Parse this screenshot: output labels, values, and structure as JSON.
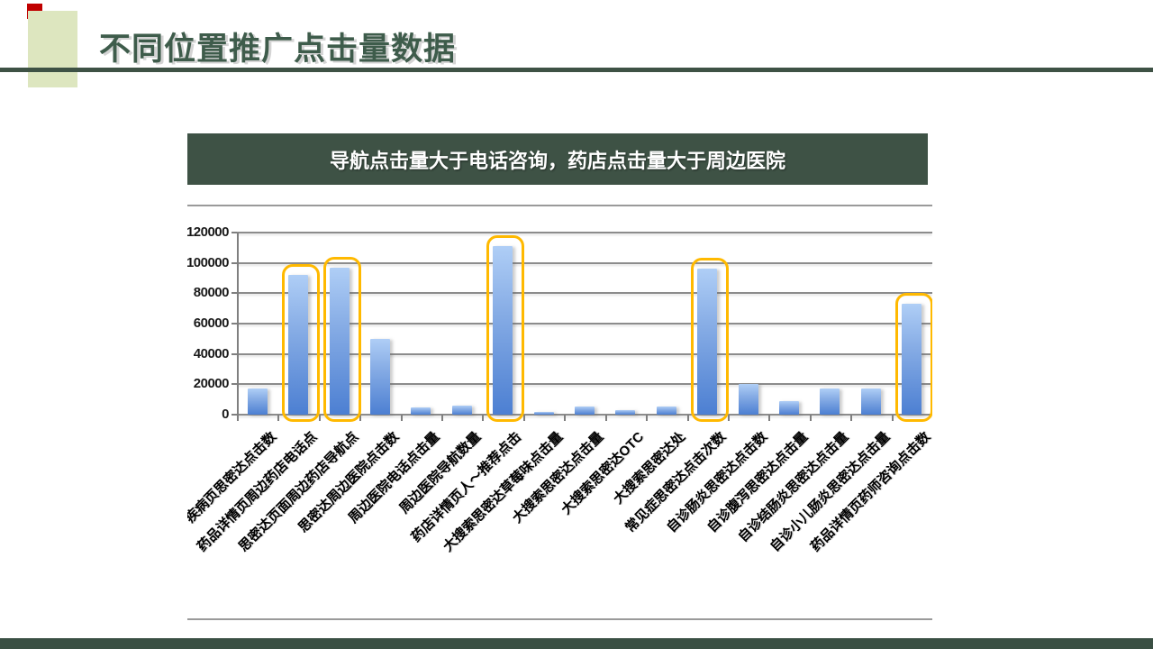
{
  "slide": {
    "title": "不同位置推广点击量数据",
    "banner": "导航点击量大于电话咨询，药店点击量大于周边医院"
  },
  "colors": {
    "accent_red": "#C00000",
    "accent_light_green": "#DDE6BF",
    "title_green": "#3E5C4B",
    "banner_bg": "#3E5245",
    "footer_bg": "#3A4F43",
    "bar_top": "#AFCEF6",
    "bar_bottom": "#4C7FD2",
    "highlight_orange": "#FFB900",
    "gridline_gray": "#8C8C8C"
  },
  "chart_data": {
    "type": "bar",
    "title": "",
    "xlabel": "",
    "ylabel": "",
    "ylim": [
      0,
      120000
    ],
    "ytick_interval": 20000,
    "ytick_labels": [
      "0",
      "20000",
      "40000",
      "60000",
      "80000",
      "100000",
      "120000"
    ],
    "grid": true,
    "legend": false,
    "categories": [
      "疾病页思密达点击数",
      "药品详情页周边药店电话点",
      "思密达页面周边药店导航点",
      "思密达周边医院点击数",
      "周边医院电话点击量",
      "周边医院导航数量",
      "药店详情页人～推荐点击",
      "大搜索思密达草莓味点击量",
      "大搜索思密达点击量",
      "大搜索思密达OTC",
      "大搜索思密达处",
      "常见症思密达点击次数",
      "自诊肠炎思密达点击数",
      "自诊腹泻思密达点击量",
      "自诊结肠炎思密达点击量",
      "自诊小儿肠炎思密达点击量",
      "药品详情页药师咨询点击数"
    ],
    "values": [
      17000,
      92000,
      97000,
      50000,
      4800,
      6000,
      111000,
      2000,
      5500,
      3200,
      5200,
      96000,
      20000,
      9000,
      17000,
      17000,
      73000
    ],
    "highlighted_indices": [
      1,
      2,
      6,
      11,
      16
    ],
    "annotation": "orange rounded boxes mark highlighted bars"
  }
}
